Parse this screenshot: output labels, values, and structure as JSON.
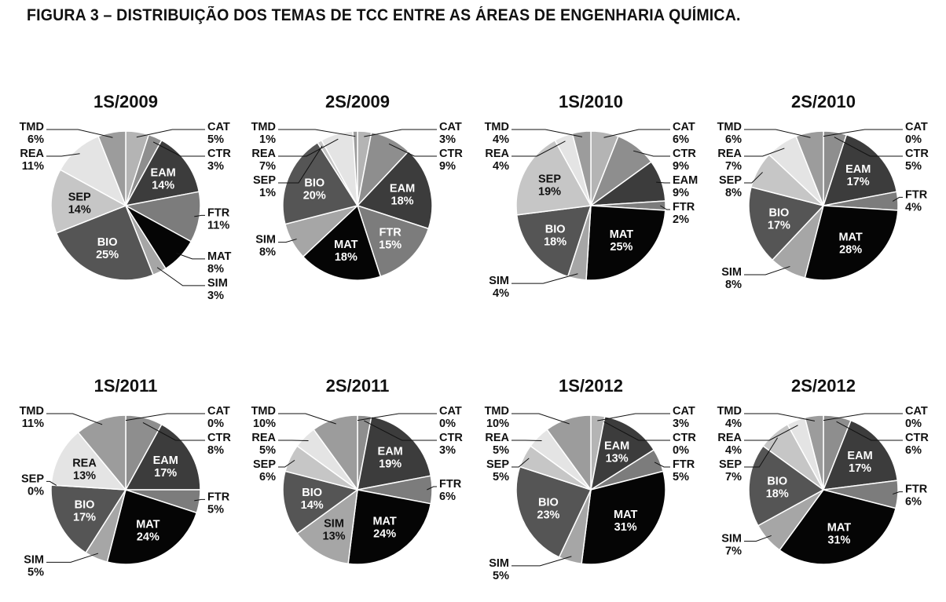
{
  "figure_title": "FIGURA 3 – DISTRIBUIÇÃO DOS TEMAS DE TCC ENTRE AS ÁREAS DE ENGENHARIA QUÍMICA.",
  "colors": {
    "CAT": "#b4b4b4",
    "CTR": "#8e8e8e",
    "EAM": "#3c3c3c",
    "FTR": "#7c7c7c",
    "MAT": "#050505",
    "SIM": "#a6a6a6",
    "BIO": "#555555",
    "SEP": "#c6c6c6",
    "REA": "#e4e4e4",
    "TMD": "#9c9c9c"
  },
  "chart_data": [
    {
      "type": "pie",
      "title": "1S/2009",
      "labels": [
        "CAT",
        "CTR",
        "EAM",
        "FTR",
        "MAT",
        "SIM",
        "BIO",
        "SEP",
        "REA",
        "TMD"
      ],
      "values": [
        5,
        3,
        14,
        11,
        8,
        3,
        25,
        14,
        11,
        6
      ]
    },
    {
      "type": "pie",
      "title": "2S/2009",
      "labels": [
        "CAT",
        "CTR",
        "EAM",
        "FTR",
        "MAT",
        "SIM",
        "BIO",
        "SEP",
        "REA",
        "TMD"
      ],
      "values": [
        3,
        9,
        18,
        15,
        18,
        8,
        20,
        1,
        7,
        1
      ]
    },
    {
      "type": "pie",
      "title": "1S/2010",
      "labels": [
        "CAT",
        "CTR",
        "EAM",
        "FTR",
        "MAT",
        "SIM",
        "BIO",
        "SEP",
        "REA",
        "TMD"
      ],
      "values": [
        6,
        9,
        9,
        2,
        25,
        4,
        18,
        19,
        4,
        4
      ]
    },
    {
      "type": "pie",
      "title": "2S/2010",
      "labels": [
        "CAT",
        "CTR",
        "EAM",
        "FTR",
        "MAT",
        "SIM",
        "BIO",
        "SEP",
        "REA",
        "TMD"
      ],
      "values": [
        0,
        5,
        17,
        4,
        28,
        8,
        17,
        8,
        7,
        6
      ]
    },
    {
      "type": "pie",
      "title": "1S/2011",
      "labels": [
        "CAT",
        "CTR",
        "EAM",
        "FTR",
        "MAT",
        "SIM",
        "BIO",
        "SEP",
        "REA",
        "TMD"
      ],
      "values": [
        0,
        8,
        17,
        5,
        24,
        5,
        17,
        0,
        13,
        11
      ]
    },
    {
      "type": "pie",
      "title": "2S/2011",
      "labels": [
        "CAT",
        "CTR",
        "EAM",
        "FTR",
        "MAT",
        "SIM",
        "BIO",
        "SEP",
        "REA",
        "TMD"
      ],
      "values": [
        0,
        3,
        19,
        6,
        24,
        13,
        14,
        6,
        5,
        10
      ]
    },
    {
      "type": "pie",
      "title": "1S/2012",
      "labels": [
        "CAT",
        "CTR",
        "EAM",
        "FTR",
        "MAT",
        "SIM",
        "BIO",
        "SEP",
        "REA",
        "TMD"
      ],
      "values": [
        3,
        0,
        13,
        5,
        31,
        5,
        23,
        5,
        5,
        10
      ]
    },
    {
      "type": "pie",
      "title": "2S/2012",
      "labels": [
        "CAT",
        "CTR",
        "EAM",
        "FTR",
        "MAT",
        "SIM",
        "BIO",
        "SEP",
        "REA",
        "TMD"
      ],
      "values": [
        0,
        6,
        17,
        6,
        31,
        7,
        18,
        7,
        4,
        4
      ]
    }
  ]
}
